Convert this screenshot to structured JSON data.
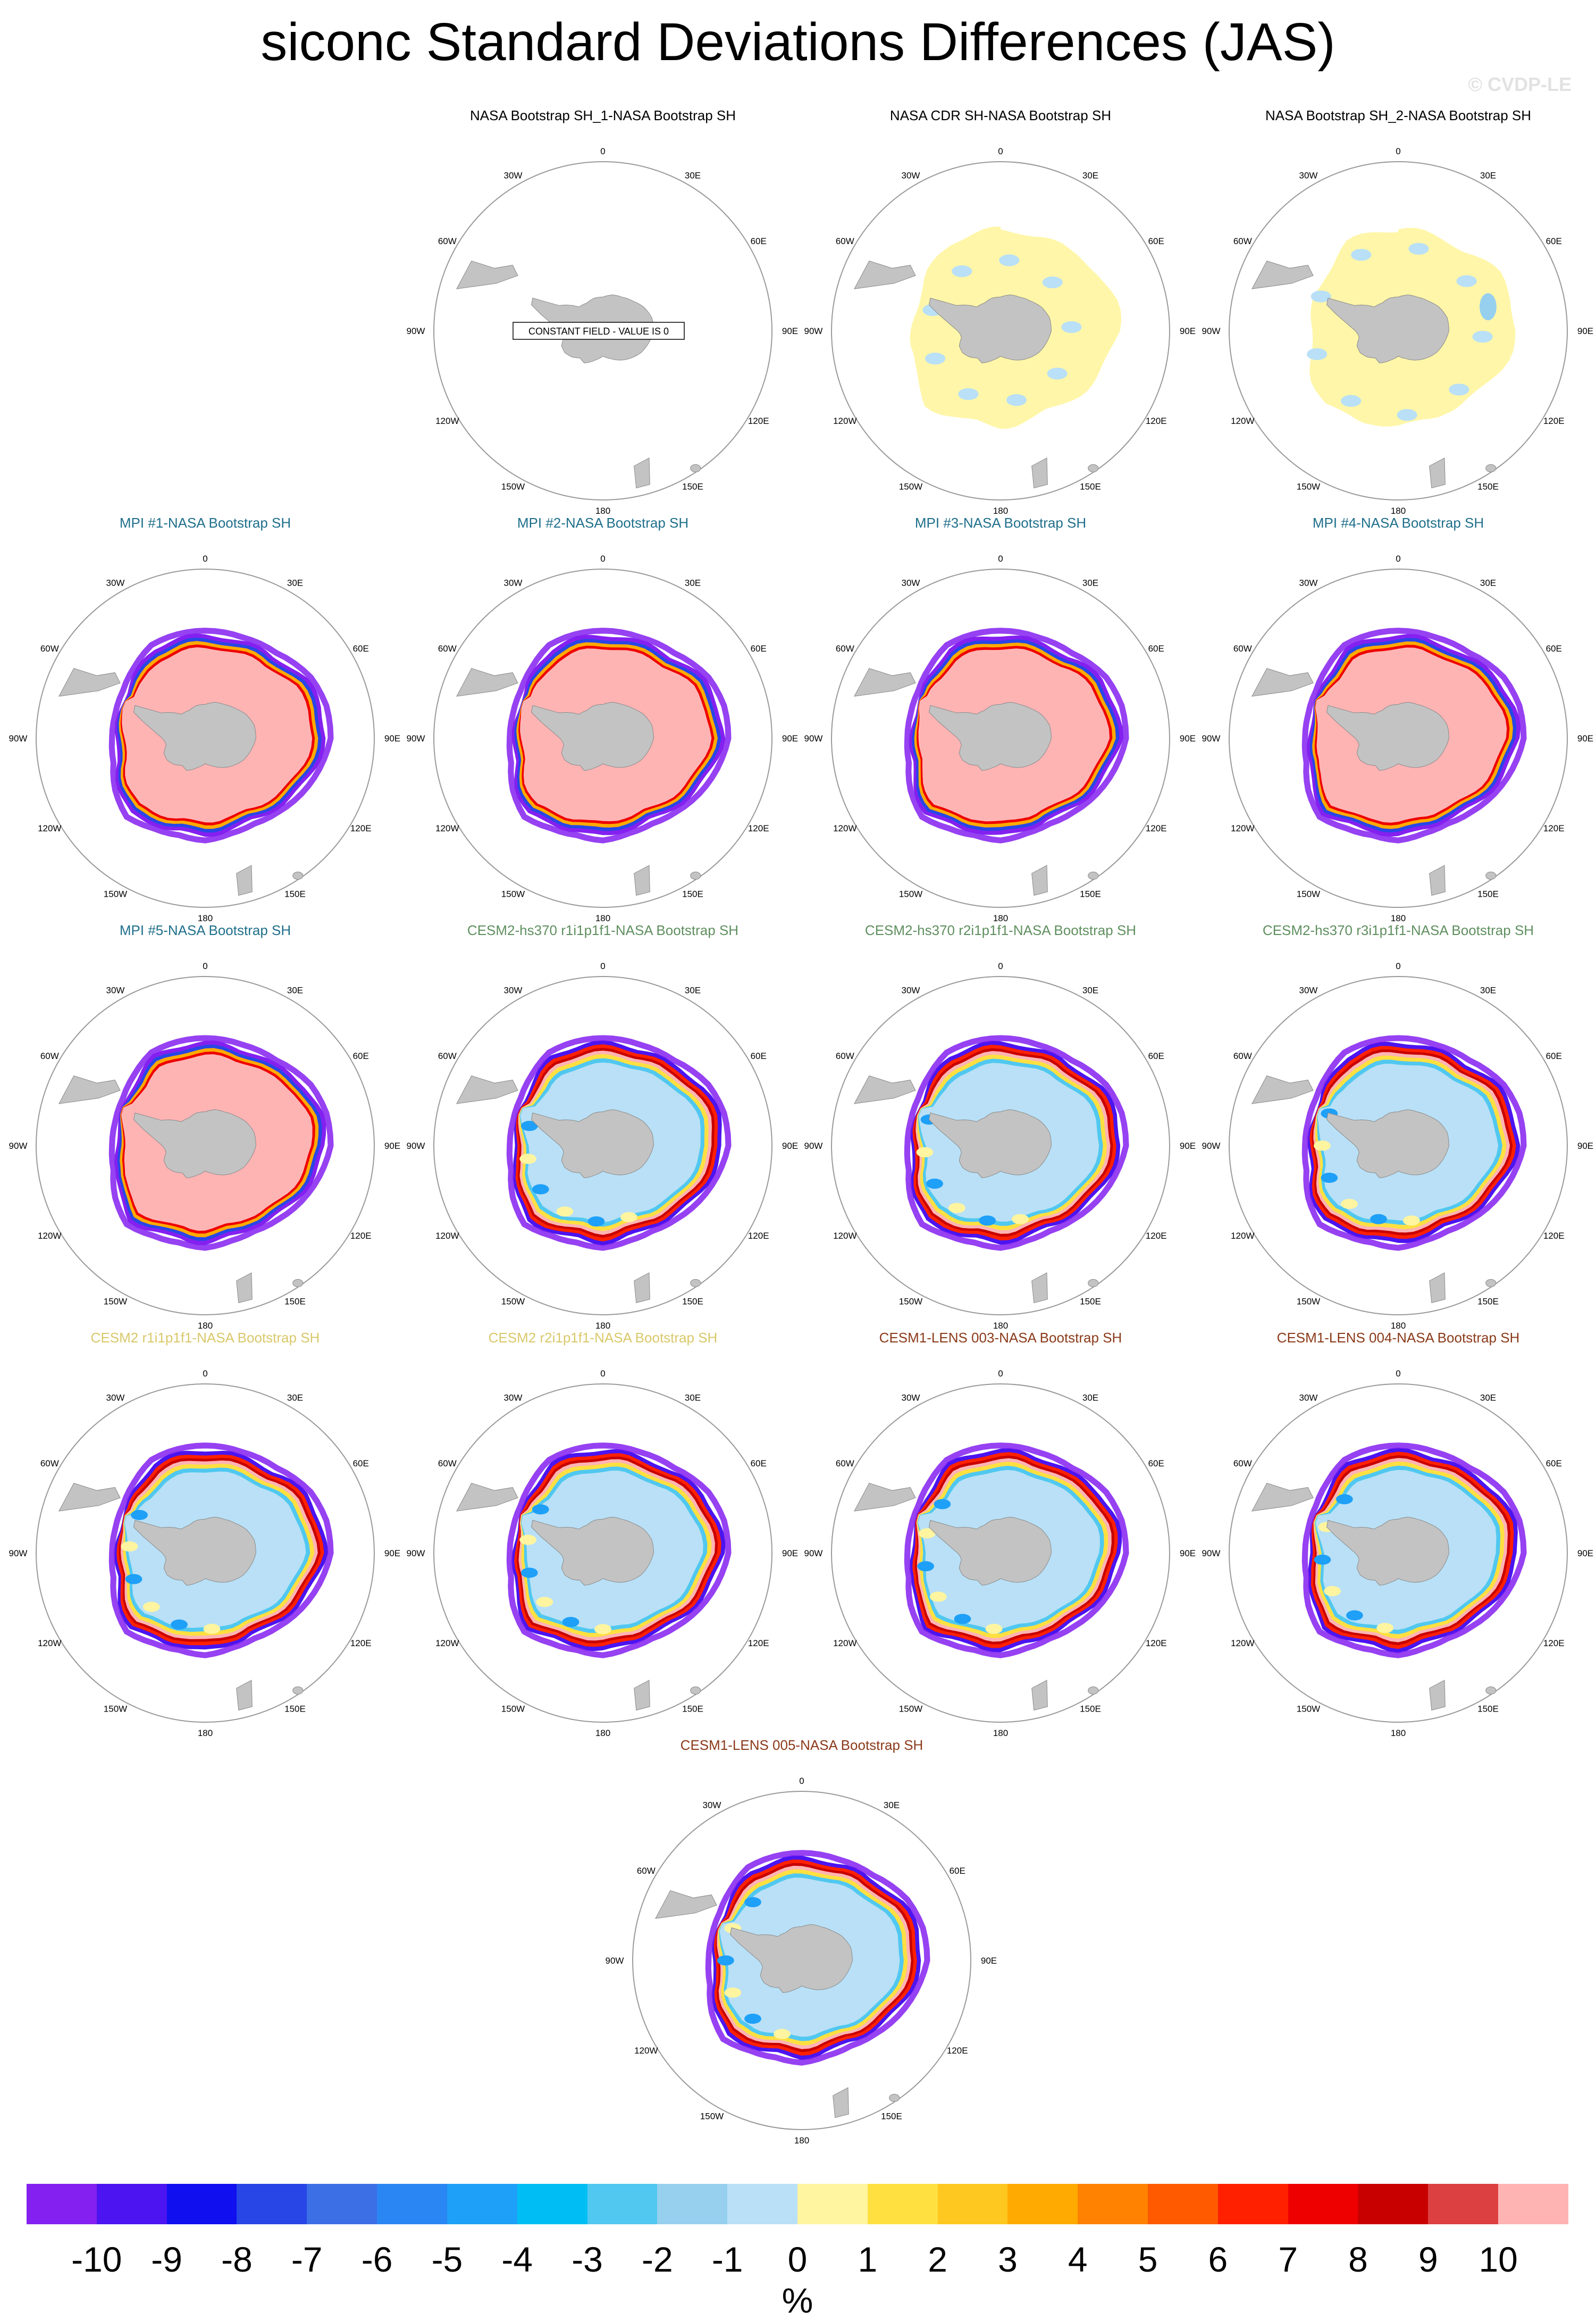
{
  "title": "siconc Standard Deviations Differences (JAS)",
  "watermark": "© CVDP-LE",
  "lon_labels": [
    "0",
    "30E",
    "60E",
    "90E",
    "120E",
    "150E",
    "180",
    "150W",
    "120W",
    "90W",
    "60W",
    "30W"
  ],
  "colors": {
    "land": "#c3c3c3",
    "circle": "#9a9a9a",
    "title_obs": "#000000",
    "title_mpi": "#1f6f8b",
    "title_cesm2hs": "#5f8f5f",
    "title_cesm2": "#d9c86a",
    "title_cesm1": "#8b3a1a"
  },
  "panels": [
    {
      "title": "NASA Bootstrap SH_1-NASA Bootstrap SH",
      "group": "obs",
      "field": "none",
      "note": "CONSTANT FIELD - VALUE IS 0"
    },
    {
      "title": "NASA CDR SH-NASA Bootstrap SH",
      "group": "obs",
      "field": "cdr"
    },
    {
      "title": "NASA Bootstrap SH_2-NASA Bootstrap SH",
      "group": "obs",
      "field": "bs2"
    },
    {
      "title": "MPI #1-NASA Bootstrap SH",
      "group": "mpi",
      "field": "mpi"
    },
    {
      "title": "MPI #2-NASA Bootstrap SH",
      "group": "mpi",
      "field": "mpi"
    },
    {
      "title": "MPI #3-NASA Bootstrap SH",
      "group": "mpi",
      "field": "mpi"
    },
    {
      "title": "MPI #4-NASA Bootstrap SH",
      "group": "mpi",
      "field": "mpi"
    },
    {
      "title": "MPI #5-NASA Bootstrap SH",
      "group": "mpi",
      "field": "mpi"
    },
    {
      "title": "CESM2-hs370 r1i1p1f1-NASA Bootstrap SH",
      "group": "cesm2hs",
      "field": "cesm2hs"
    },
    {
      "title": "CESM2-hs370 r2i1p1f1-NASA Bootstrap SH",
      "group": "cesm2hs",
      "field": "cesm2hs"
    },
    {
      "title": "CESM2-hs370 r3i1p1f1-NASA Bootstrap SH",
      "group": "cesm2hs",
      "field": "cesm2hs"
    },
    {
      "title": "CESM2 r1i1p1f1-NASA Bootstrap SH",
      "group": "cesm2",
      "field": "cesm2"
    },
    {
      "title": "CESM2 r2i1p1f1-NASA Bootstrap SH",
      "group": "cesm2",
      "field": "cesm2"
    },
    {
      "title": "CESM1-LENS 003-NASA Bootstrap SH",
      "group": "cesm1",
      "field": "cesm1"
    },
    {
      "title": "CESM1-LENS 004-NASA Bootstrap SH",
      "group": "cesm1",
      "field": "cesm1"
    },
    {
      "title": "CESM1-LENS 005-NASA Bootstrap SH",
      "group": "cesm1",
      "field": "cesm1"
    }
  ],
  "colorbar": {
    "units": "%",
    "labels": [
      "-10",
      "-9",
      "-8",
      "-7",
      "-6",
      "-5",
      "-4",
      "-3",
      "-2",
      "-1",
      "0",
      "1",
      "2",
      "3",
      "4",
      "5",
      "6",
      "7",
      "8",
      "9",
      "10"
    ],
    "colors": [
      "#8420f0",
      "#4b14f0",
      "#0f0ff0",
      "#2846e6",
      "#3c6ee6",
      "#2a86f2",
      "#1ea0f8",
      "#00bef4",
      "#50c8f0",
      "#96d0ee",
      "#b9e0f6",
      "#fff5a0",
      "#ffe040",
      "#ffc820",
      "#ffaa00",
      "#ff8200",
      "#ff5a00",
      "#ff2000",
      "#ee0000",
      "#c80000",
      "#dc4040",
      "#ffb4b4"
    ]
  }
}
